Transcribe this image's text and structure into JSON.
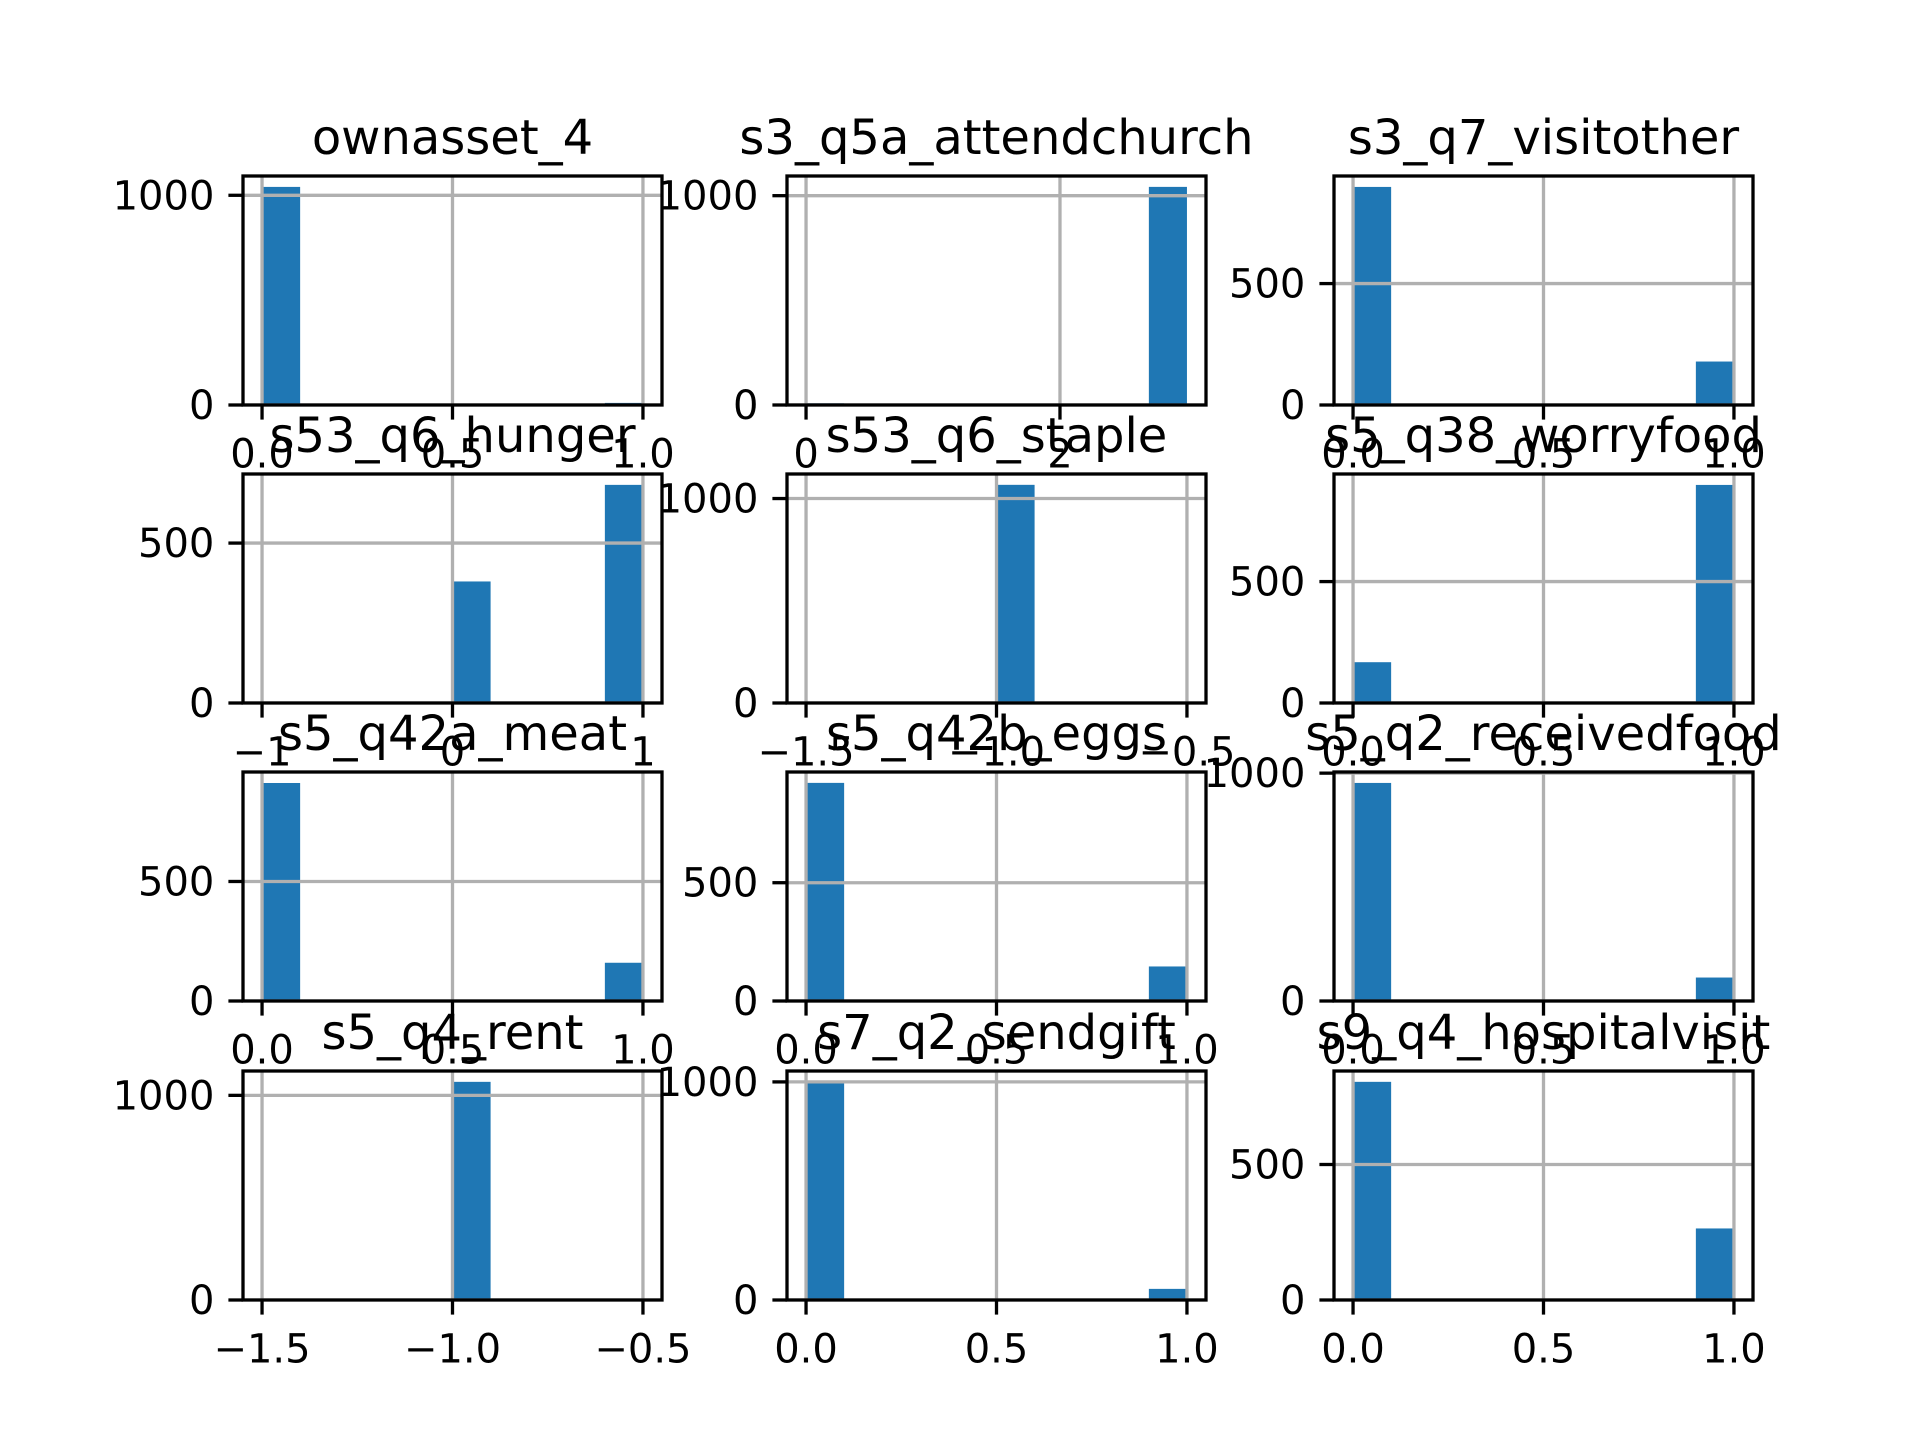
{
  "chart_data": [
    {
      "type": "histogram",
      "title": "ownasset_4",
      "color": "#1f77b4",
      "grid": true,
      "bins": [
        0,
        0.1,
        0.2,
        0.3,
        0.4,
        0.5,
        0.6,
        0.7,
        0.8,
        0.9,
        1
      ],
      "values": [
        1040,
        0,
        0,
        0,
        0,
        0,
        0,
        0,
        0,
        10
      ],
      "xlim": [
        -0.05,
        1.05
      ],
      "ylim": [
        0,
        1092
      ],
      "xticks": [
        {
          "value": 0,
          "label": "0.0"
        },
        {
          "value": 0.5,
          "label": "0.5"
        },
        {
          "value": 1,
          "label": "1.0"
        }
      ],
      "yticks": [
        0,
        1000
      ]
    },
    {
      "type": "histogram",
      "title": "s3_q5a_attendchurch",
      "color": "#1f77b4",
      "grid": true,
      "bins": [
        0,
        0.3,
        0.6,
        0.9,
        1.2,
        1.5,
        1.8,
        2.1,
        2.4,
        2.7,
        3
      ],
      "values": [
        8,
        0,
        0,
        0,
        0,
        0,
        0,
        0,
        0,
        1042
      ],
      "xlim": [
        -0.15,
        3.15
      ],
      "ylim": [
        0,
        1094
      ],
      "xticks": [
        0,
        2
      ],
      "yticks": [
        0,
        1000
      ]
    },
    {
      "type": "histogram",
      "title": "s3_q7_visitother",
      "color": "#1f77b4",
      "grid": true,
      "bins": [
        0,
        0.1,
        0.2,
        0.3,
        0.4,
        0.5,
        0.6,
        0.7,
        0.8,
        0.9,
        1
      ],
      "values": [
        898,
        0,
        0,
        0,
        0,
        0,
        0,
        0,
        0,
        179
      ],
      "xlim": [
        -0.05,
        1.05
      ],
      "ylim": [
        0,
        943
      ],
      "xticks": [
        {
          "value": 0,
          "label": "0.0"
        },
        {
          "value": 0.5,
          "label": "0.5"
        },
        {
          "value": 1,
          "label": "1.0"
        }
      ],
      "yticks": [
        0,
        500
      ]
    },
    {
      "type": "histogram",
      "title": "s53_q6_hunger",
      "color": "#1f77b4",
      "grid": true,
      "bins": [
        -1,
        -0.8,
        -0.6,
        -0.4,
        -0.2,
        0,
        0.2,
        0.4,
        0.6,
        0.8,
        1
      ],
      "values": [
        2,
        0,
        0,
        0,
        0,
        380,
        0,
        0,
        0,
        682
      ],
      "xlim": [
        -1.1,
        1.1
      ],
      "ylim": [
        0,
        716
      ],
      "xticks": [
        {
          "value": -1,
          "label": "−1"
        },
        0,
        1
      ],
      "yticks": [
        0,
        500
      ]
    },
    {
      "type": "histogram",
      "title": "s53_q6_staple",
      "color": "#1f77b4",
      "grid": true,
      "bins": [
        -1.5,
        -1.4,
        -1.3,
        -1.2,
        -1.1,
        -1.0,
        -0.9,
        -0.8,
        -0.7,
        -0.6,
        -0.5
      ],
      "values": [
        0,
        0,
        0,
        0,
        0,
        1067,
        0,
        0,
        0,
        0
      ],
      "xlim": [
        -1.55,
        -0.45
      ],
      "ylim": [
        0,
        1120
      ],
      "xticks": [
        {
          "value": -1.5,
          "label": "−1.5"
        },
        {
          "value": -1,
          "label": "−1.0"
        },
        {
          "value": -0.5,
          "label": "−0.5"
        }
      ],
      "yticks": [
        0,
        1000
      ]
    },
    {
      "type": "histogram",
      "title": "s5_q38_worryfood",
      "color": "#1f77b4",
      "grid": true,
      "bins": [
        0,
        0.1,
        0.2,
        0.3,
        0.4,
        0.5,
        0.6,
        0.7,
        0.8,
        0.9,
        1
      ],
      "values": [
        168,
        0,
        0,
        0,
        0,
        0,
        0,
        0,
        0,
        898
      ],
      "xlim": [
        -0.05,
        1.05
      ],
      "ylim": [
        0,
        943
      ],
      "xticks": [
        {
          "value": 0,
          "label": "0.0"
        },
        {
          "value": 0.5,
          "label": "0.5"
        },
        {
          "value": 1,
          "label": "1.0"
        }
      ],
      "yticks": [
        0,
        500
      ]
    },
    {
      "type": "histogram",
      "title": "s5_q42a_meat",
      "color": "#1f77b4",
      "grid": true,
      "bins": [
        0,
        0.1,
        0.2,
        0.3,
        0.4,
        0.5,
        0.6,
        0.7,
        0.8,
        0.9,
        1
      ],
      "values": [
        912,
        0,
        0,
        0,
        0,
        0,
        0,
        0,
        0,
        160
      ],
      "xlim": [
        -0.05,
        1.05
      ],
      "ylim": [
        0,
        958
      ],
      "xticks": [
        {
          "value": 0,
          "label": "0.0"
        },
        {
          "value": 0.5,
          "label": "0.5"
        },
        {
          "value": 1,
          "label": "1.0"
        }
      ],
      "yticks": [
        0,
        500
      ]
    },
    {
      "type": "histogram",
      "title": "s5_q42b_eggs",
      "color": "#1f77b4",
      "grid": true,
      "bins": [
        0,
        0.1,
        0.2,
        0.3,
        0.4,
        0.5,
        0.6,
        0.7,
        0.8,
        0.9,
        1
      ],
      "values": [
        922,
        0,
        0,
        0,
        0,
        0,
        0,
        0,
        0,
        146
      ],
      "xlim": [
        -0.05,
        1.05
      ],
      "ylim": [
        0,
        968
      ],
      "xticks": [
        {
          "value": 0,
          "label": "0.0"
        },
        {
          "value": 0.5,
          "label": "0.5"
        },
        {
          "value": 1,
          "label": "1.0"
        }
      ],
      "yticks": [
        0,
        500
      ]
    },
    {
      "type": "histogram",
      "title": "s5_q2_receivedfood",
      "color": "#1f77b4",
      "grid": true,
      "bins": [
        0,
        0.1,
        0.2,
        0.3,
        0.4,
        0.5,
        0.6,
        0.7,
        0.8,
        0.9,
        1
      ],
      "values": [
        957,
        0,
        0,
        0,
        0,
        0,
        0,
        0,
        0,
        103
      ],
      "xlim": [
        -0.05,
        1.05
      ],
      "ylim": [
        0,
        1005
      ],
      "xticks": [
        {
          "value": 0,
          "label": "0.0"
        },
        {
          "value": 0.5,
          "label": "0.5"
        },
        {
          "value": 1,
          "label": "1.0"
        }
      ],
      "yticks": [
        0,
        1000
      ]
    },
    {
      "type": "histogram",
      "title": "s5_q4_rent",
      "color": "#1f77b4",
      "grid": true,
      "bins": [
        -1.5,
        -1.4,
        -1.3,
        -1.2,
        -1.1,
        -1.0,
        -0.9,
        -0.8,
        -0.7,
        -0.6,
        -0.5
      ],
      "values": [
        0,
        0,
        0,
        0,
        0,
        1066,
        0,
        0,
        0,
        0
      ],
      "xlim": [
        -1.55,
        -0.45
      ],
      "ylim": [
        0,
        1119
      ],
      "xticks": [
        {
          "value": -1.5,
          "label": "−1.5"
        },
        {
          "value": -1,
          "label": "−1.0"
        },
        {
          "value": -0.5,
          "label": "−0.5"
        }
      ],
      "yticks": [
        0,
        1000
      ]
    },
    {
      "type": "histogram",
      "title": "s7_q2_sendgift",
      "color": "#1f77b4",
      "grid": true,
      "bins": [
        0,
        0.1,
        0.2,
        0.3,
        0.4,
        0.5,
        0.6,
        0.7,
        0.8,
        0.9,
        1
      ],
      "values": [
        1000,
        0,
        0,
        0,
        0,
        0,
        0,
        0,
        0,
        51
      ],
      "xlim": [
        -0.05,
        1.05
      ],
      "ylim": [
        0,
        1050
      ],
      "xticks": [
        {
          "value": 0,
          "label": "0.0"
        },
        {
          "value": 0.5,
          "label": "0.5"
        },
        {
          "value": 1,
          "label": "1.0"
        }
      ],
      "yticks": [
        0,
        1000
      ]
    },
    {
      "type": "histogram",
      "title": "s9_q4_hospitalvisit",
      "color": "#1f77b4",
      "grid": true,
      "bins": [
        0,
        0.1,
        0.2,
        0.3,
        0.4,
        0.5,
        0.6,
        0.7,
        0.8,
        0.9,
        1
      ],
      "values": [
        805,
        0,
        0,
        0,
        0,
        0,
        0,
        0,
        0,
        264
      ],
      "xlim": [
        -0.05,
        1.05
      ],
      "ylim": [
        0,
        845
      ],
      "xticks": [
        {
          "value": 0,
          "label": "0.0"
        },
        {
          "value": 0.5,
          "label": "0.5"
        },
        {
          "value": 1,
          "label": "1.0"
        }
      ],
      "yticks": [
        0,
        500
      ]
    }
  ]
}
